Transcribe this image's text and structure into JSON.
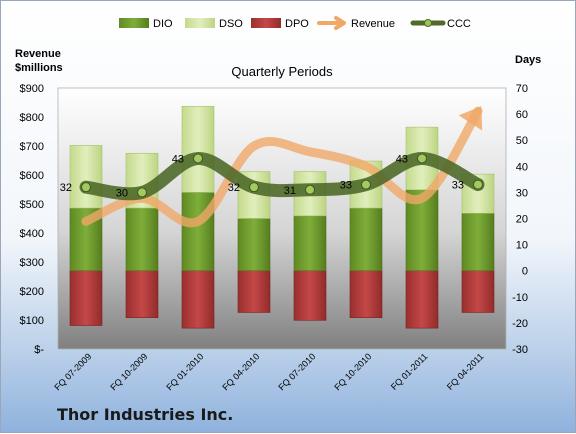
{
  "company": "Thor Industries Inc.",
  "chart_data": {
    "type": "bar",
    "title": "Quarterly Periods",
    "ylabel_left": "Revenue\n$millions",
    "ylabel_right": "Days",
    "ylim_left": [
      0,
      900
    ],
    "ylim_right": [
      -30,
      70
    ],
    "left_tick_labels": [
      "$-",
      "$100",
      "$200",
      "$300",
      "$400",
      "$500",
      "$600",
      "$700",
      "$800",
      "$900"
    ],
    "right_tick_labels": [
      "-30",
      "-20",
      "-10",
      "0",
      "10",
      "20",
      "30",
      "40",
      "50",
      "60",
      "70"
    ],
    "categories": [
      "FQ 07-2009",
      "FQ 10-2009",
      "FQ 01-2010",
      "FQ 04-2010",
      "FQ 07-2010",
      "FQ 10-2010",
      "FQ 01-2011",
      "FQ 04-2011"
    ],
    "series": [
      {
        "name": "DIO",
        "axis": "days",
        "color": "#6f9a2f",
        "values": [
          24,
          24,
          30,
          20,
          21,
          24,
          31,
          22
        ]
      },
      {
        "name": "DSO",
        "axis": "days",
        "color": "#d3e6a5",
        "values": [
          24,
          21,
          33,
          18,
          17,
          18,
          24,
          15
        ]
      },
      {
        "name": "DPO",
        "axis": "days",
        "color": "#b23a3a",
        "values": [
          21,
          18,
          22,
          16,
          19,
          18,
          22,
          16
        ]
      },
      {
        "name": "Revenue",
        "axis": "revenue",
        "color": "#f0a868",
        "values": [
          440,
          520,
          440,
          700,
          680,
          630,
          520,
          820
        ]
      },
      {
        "name": "CCC",
        "axis": "days",
        "color": "#4f6a2a",
        "values": [
          32,
          30,
          43,
          32,
          31,
          33,
          43,
          33
        ]
      }
    ],
    "legend_position": "top",
    "grid": false
  }
}
